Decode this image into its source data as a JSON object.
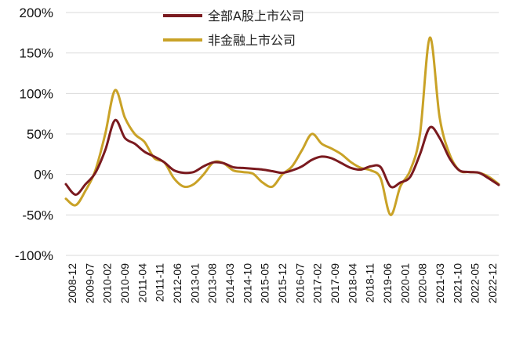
{
  "chart_data": {
    "type": "line",
    "title": "",
    "xlabel": "",
    "ylabel": "",
    "ylim": [
      -100,
      200
    ],
    "y_ticks": [
      "200%",
      "150%",
      "100%",
      "50%",
      "0%",
      "-50%",
      "-100%"
    ],
    "x_ticks": [
      "2008-12",
      "2009-07",
      "2010-02",
      "2010-09",
      "2011-04",
      "2011-11",
      "2012-06",
      "2013-01",
      "2013-08",
      "2014-03",
      "2014-10",
      "2015-05",
      "2015-12",
      "2016-07",
      "2017-02",
      "2017-09",
      "2018-04",
      "2018-11",
      "2019-06",
      "2020-01",
      "2020-08",
      "2021-03",
      "2021-10",
      "2022-05",
      "2022-12"
    ],
    "legend_position": "top-center",
    "grid": "horizontal",
    "series": [
      {
        "name": "全部A股上市公司",
        "color": "#7a1a1f",
        "points": [
          [
            0,
            -12
          ],
          [
            1,
            -25
          ],
          [
            2,
            -12
          ],
          [
            3,
            2
          ],
          [
            4,
            30
          ],
          [
            5,
            67
          ],
          [
            6,
            45
          ],
          [
            7,
            38
          ],
          [
            8,
            28
          ],
          [
            9,
            22
          ],
          [
            10,
            15
          ],
          [
            11,
            5
          ],
          [
            12,
            2
          ],
          [
            13,
            3
          ],
          [
            14,
            10
          ],
          [
            15,
            15
          ],
          [
            16,
            14
          ],
          [
            17,
            9
          ],
          [
            18,
            8
          ],
          [
            19,
            7
          ],
          [
            20,
            6
          ],
          [
            21,
            4
          ],
          [
            22,
            2
          ],
          [
            23,
            5
          ],
          [
            24,
            10
          ],
          [
            25,
            18
          ],
          [
            26,
            22
          ],
          [
            27,
            20
          ],
          [
            28,
            14
          ],
          [
            29,
            8
          ],
          [
            30,
            6
          ],
          [
            31,
            10
          ],
          [
            32,
            9
          ],
          [
            33,
            -15
          ],
          [
            34,
            -10
          ],
          [
            35,
            -3
          ],
          [
            36,
            25
          ],
          [
            37,
            58
          ],
          [
            38,
            45
          ],
          [
            39,
            20
          ],
          [
            40,
            5
          ],
          [
            41,
            3
          ],
          [
            42,
            2
          ],
          [
            43,
            -5
          ],
          [
            44,
            -13
          ]
        ]
      },
      {
        "name": "非金融上市公司",
        "color": "#c9a227",
        "points": [
          [
            0,
            -30
          ],
          [
            1,
            -38
          ],
          [
            2,
            -20
          ],
          [
            3,
            5
          ],
          [
            4,
            50
          ],
          [
            5,
            104
          ],
          [
            6,
            70
          ],
          [
            7,
            50
          ],
          [
            8,
            40
          ],
          [
            9,
            20
          ],
          [
            10,
            15
          ],
          [
            11,
            -5
          ],
          [
            12,
            -15
          ],
          [
            13,
            -12
          ],
          [
            14,
            0
          ],
          [
            15,
            15
          ],
          [
            16,
            14
          ],
          [
            17,
            5
          ],
          [
            18,
            3
          ],
          [
            19,
            1
          ],
          [
            20,
            -10
          ],
          [
            21,
            -15
          ],
          [
            22,
            0
          ],
          [
            23,
            10
          ],
          [
            24,
            30
          ],
          [
            25,
            50
          ],
          [
            26,
            38
          ],
          [
            27,
            32
          ],
          [
            28,
            25
          ],
          [
            29,
            15
          ],
          [
            30,
            8
          ],
          [
            31,
            5
          ],
          [
            32,
            -5
          ],
          [
            33,
            -50
          ],
          [
            34,
            -15
          ],
          [
            35,
            5
          ],
          [
            36,
            50
          ],
          [
            37,
            169
          ],
          [
            38,
            70
          ],
          [
            39,
            25
          ],
          [
            40,
            5
          ],
          [
            41,
            3
          ],
          [
            42,
            2
          ],
          [
            43,
            -3
          ],
          [
            44,
            -12
          ]
        ]
      }
    ]
  }
}
